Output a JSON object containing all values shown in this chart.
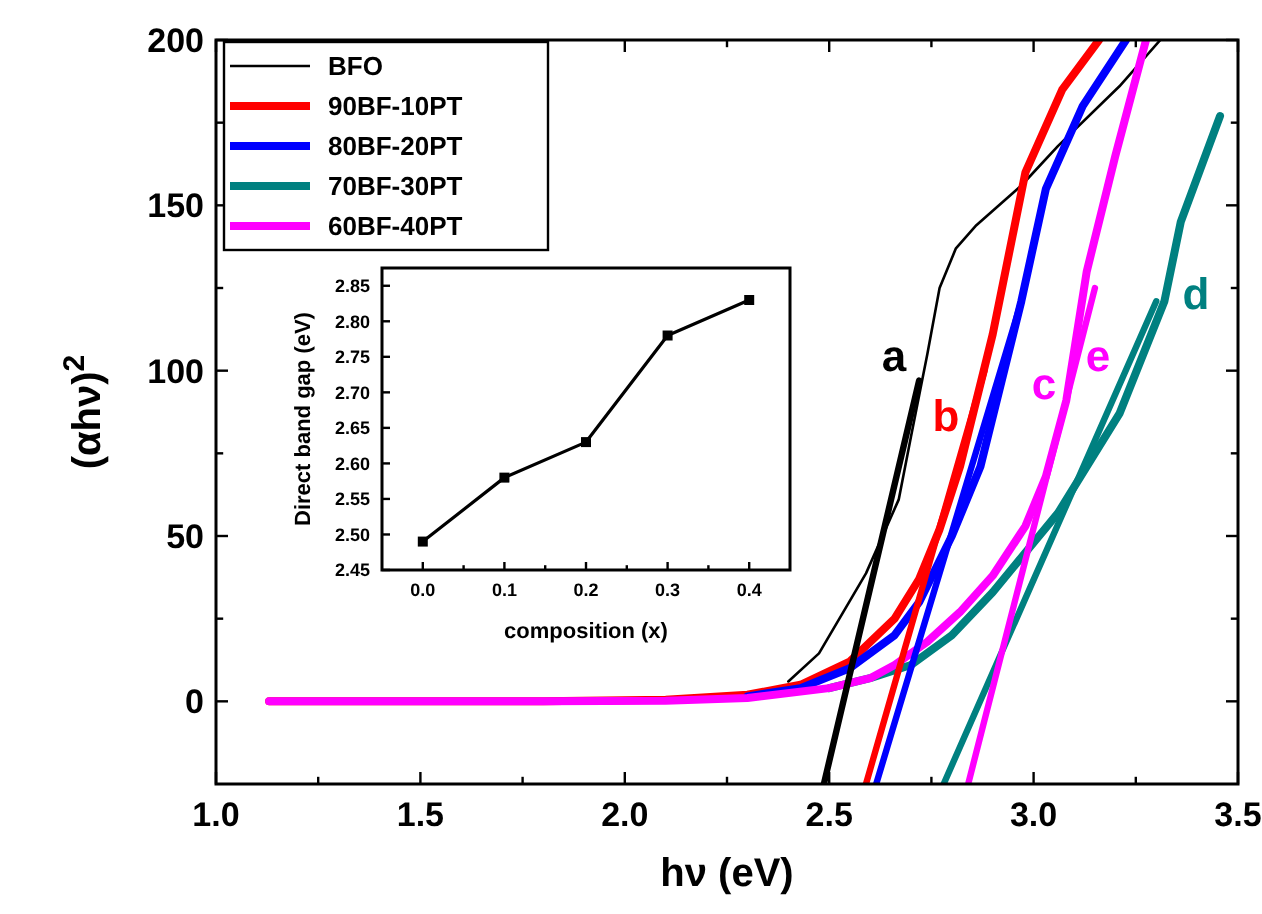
{
  "chart_data": [
    {
      "type": "line",
      "xlabel": "hν (eV)",
      "ylabel": "(αhν)$^{2}$",
      "xlim": [
        1.0,
        3.5
      ],
      "ylim": [
        -25,
        200
      ],
      "xticks": [
        {
          "value": 1.0,
          "label": "1.0"
        },
        {
          "value": 1.25,
          "label": null
        },
        {
          "value": 1.5,
          "label": "1.5"
        },
        {
          "value": 1.75,
          "label": null
        },
        {
          "value": 2.0,
          "label": "2.0"
        },
        {
          "value": 2.25,
          "label": null
        },
        {
          "value": 2.5,
          "label": "2.5"
        },
        {
          "value": 2.75,
          "label": null
        },
        {
          "value": 3.0,
          "label": "3.0"
        },
        {
          "value": 3.25,
          "label": null
        },
        {
          "value": 3.5,
          "label": "3.5"
        }
      ],
      "yticks": [
        {
          "value": 0,
          "label": "0"
        },
        {
          "value": 25,
          "label": null
        },
        {
          "value": 50,
          "label": "50"
        },
        {
          "value": 75,
          "label": null
        },
        {
          "value": 100,
          "label": "100"
        },
        {
          "value": 125,
          "label": null
        },
        {
          "value": 150,
          "label": "150"
        },
        {
          "value": 175,
          "label": null
        },
        {
          "value": 200,
          "label": "200"
        }
      ],
      "legend": "top left",
      "grid": false,
      "marker": "none",
      "line_style": "solid",
      "series": [
        {
          "name": "BFO",
          "color": "#000000",
          "x": [
            2.4,
            2.475,
            2.59,
            2.67,
            2.7,
            2.74,
            2.77,
            2.81,
            2.86,
            2.97,
            3.06,
            3.21,
            3.31
          ],
          "values": [
            6,
            14.5,
            38.7,
            61,
            80,
            105,
            125,
            137,
            144,
            156,
            168,
            186,
            200
          ]
        },
        {
          "name": "90BF-10PT",
          "color": "#ff0000",
          "x": [
            1.13,
            1.8,
            2.1,
            2.3,
            2.43,
            2.55,
            2.66,
            2.72,
            2.77,
            2.82,
            2.9,
            2.98,
            3.07,
            3.16
          ],
          "values": [
            0,
            0,
            0.5,
            2,
            5,
            12,
            25,
            37,
            52,
            71,
            111,
            160,
            185,
            200
          ]
        },
        {
          "name": "80BF-20PT",
          "color": "#0000ff",
          "x": [
            2.3,
            2.43,
            2.55,
            2.66,
            2.72,
            2.8,
            2.87,
            2.97,
            3.03,
            3.12,
            3.226
          ],
          "values": [
            1.5,
            4,
            10,
            20,
            30,
            50,
            71,
            121,
            155,
            180,
            200
          ]
        },
        {
          "name": "70BF-30PT",
          "color": "#008080",
          "x": [
            2.5,
            2.6,
            2.7,
            2.8,
            2.9,
            3.06,
            3.21,
            3.32,
            3.36,
            3.456
          ],
          "values": [
            4,
            7,
            11,
            20,
            33,
            57,
            87,
            121,
            145,
            177
          ]
        },
        {
          "name": "60BF-40PT",
          "color": "#ff00ff",
          "x": [
            1.13,
            1.8,
            2.1,
            2.3,
            2.5,
            2.6,
            2.66,
            2.74,
            2.82,
            2.9,
            2.98,
            3.03,
            3.08,
            3.13,
            3.2,
            3.275
          ],
          "values": [
            0,
            0,
            0.2,
            1,
            4,
            7,
            11,
            18,
            27,
            38,
            53,
            68,
            91,
            130,
            165,
            200
          ]
        },
        {
          "color": "#000000",
          "x": [
            2.487,
            2.72
          ],
          "values": [
            -25,
            97
          ]
        },
        {
          "color": "#ff0000",
          "x": [
            2.59,
            2.88
          ],
          "values": [
            -25,
            100
          ]
        },
        {
          "color": "#0000ff",
          "x": [
            2.615,
            2.97
          ],
          "values": [
            -25,
            121
          ]
        },
        {
          "color": "#008080",
          "x": [
            2.78,
            3.3
          ],
          "values": [
            -25,
            121
          ]
        },
        {
          "color": "#ff00ff",
          "x": [
            2.84,
            3.15
          ],
          "values": [
            -25,
            125
          ]
        }
      ],
      "annotations": [
        "a",
        "b",
        "c",
        "d",
        "e"
      ]
    },
    {
      "type": "line",
      "xlabel": "composition (x)",
      "ylabel": "Direct band gap (eV)",
      "xlim": [
        -0.05,
        0.45
      ],
      "ylim": [
        2.45,
        2.875
      ],
      "xticks": [
        {
          "value": 0,
          "label": "0.0"
        },
        {
          "value": 0.05,
          "label": null
        },
        {
          "value": 0.1,
          "label": "0.1"
        },
        {
          "value": 0.15,
          "label": null
        },
        {
          "value": 0.2,
          "label": "0.2"
        },
        {
          "value": 0.25,
          "label": null
        },
        {
          "value": 0.3,
          "label": "0.3"
        },
        {
          "value": 0.35,
          "label": null
        },
        {
          "value": 0.4,
          "label": "0.4"
        }
      ],
      "yticks": [
        {
          "value": 2.45,
          "label": "2.45"
        },
        {
          "value": 2.5,
          "label": "2.50"
        },
        {
          "value": 2.55,
          "label": "2.55"
        },
        {
          "value": 2.6,
          "label": "2.60"
        },
        {
          "value": 2.65,
          "label": "2.65"
        },
        {
          "value": 2.7,
          "label": "2.70"
        },
        {
          "value": 2.75,
          "label": "2.75"
        },
        {
          "value": 2.8,
          "label": "2.80"
        },
        {
          "value": 2.85,
          "label": "2.85"
        }
      ],
      "grid": false,
      "marker": "square",
      "line_style": "solid",
      "series": [
        {
          "color": "#000000",
          "x": [
            0,
            0.1,
            0.2,
            0.3,
            0.4
          ],
          "values": [
            2.49,
            2.58,
            2.63,
            2.78,
            2.83
          ]
        }
      ]
    }
  ]
}
